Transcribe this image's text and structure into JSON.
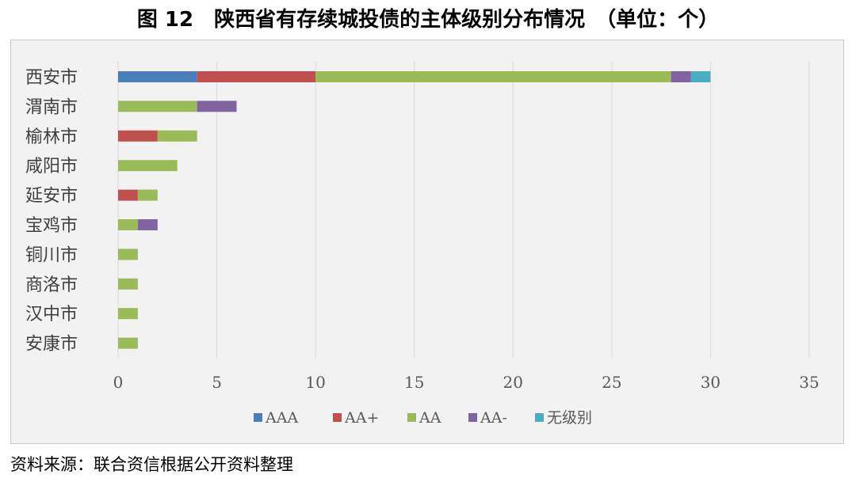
{
  "title": "图 12　陕西省有存续城投债的主体级别分布情况　（单位：个）",
  "source": "资料来源：联合资信根据公开资料整理",
  "colors": {
    "AAA": "#4a7ebb",
    "AA+": "#c0504d",
    "AA": "#9bbb59",
    "AA-": "#8064a2",
    "无级别": "#4bacc6",
    "grid": "#d9d9d9",
    "background": "#f2f2f2"
  },
  "chart_data": {
    "type": "bar",
    "orientation": "horizontal",
    "stacked": true,
    "categories": [
      "西安市",
      "渭南市",
      "榆林市",
      "咸阳市",
      "延安市",
      "宝鸡市",
      "铜川市",
      "商洛市",
      "汉中市",
      "安康市"
    ],
    "series": [
      {
        "name": "AAA",
        "values": [
          4,
          0,
          0,
          0,
          0,
          0,
          0,
          0,
          0,
          0
        ]
      },
      {
        "name": "AA+",
        "values": [
          6,
          0,
          2,
          0,
          1,
          0,
          0,
          0,
          0,
          0
        ]
      },
      {
        "name": "AA",
        "values": [
          18,
          4,
          2,
          3,
          1,
          1,
          1,
          1,
          1,
          1
        ]
      },
      {
        "name": "AA-",
        "values": [
          1,
          2,
          0,
          0,
          0,
          1,
          0,
          0,
          0,
          0
        ]
      },
      {
        "name": "无级别",
        "values": [
          1,
          0,
          0,
          0,
          0,
          0,
          0,
          0,
          0,
          0
        ]
      }
    ],
    "xlim": [
      0,
      35
    ],
    "xticks": [
      0,
      5,
      10,
      15,
      20,
      25,
      30,
      35
    ],
    "grid": "vertical",
    "legend_position": "bottom"
  }
}
